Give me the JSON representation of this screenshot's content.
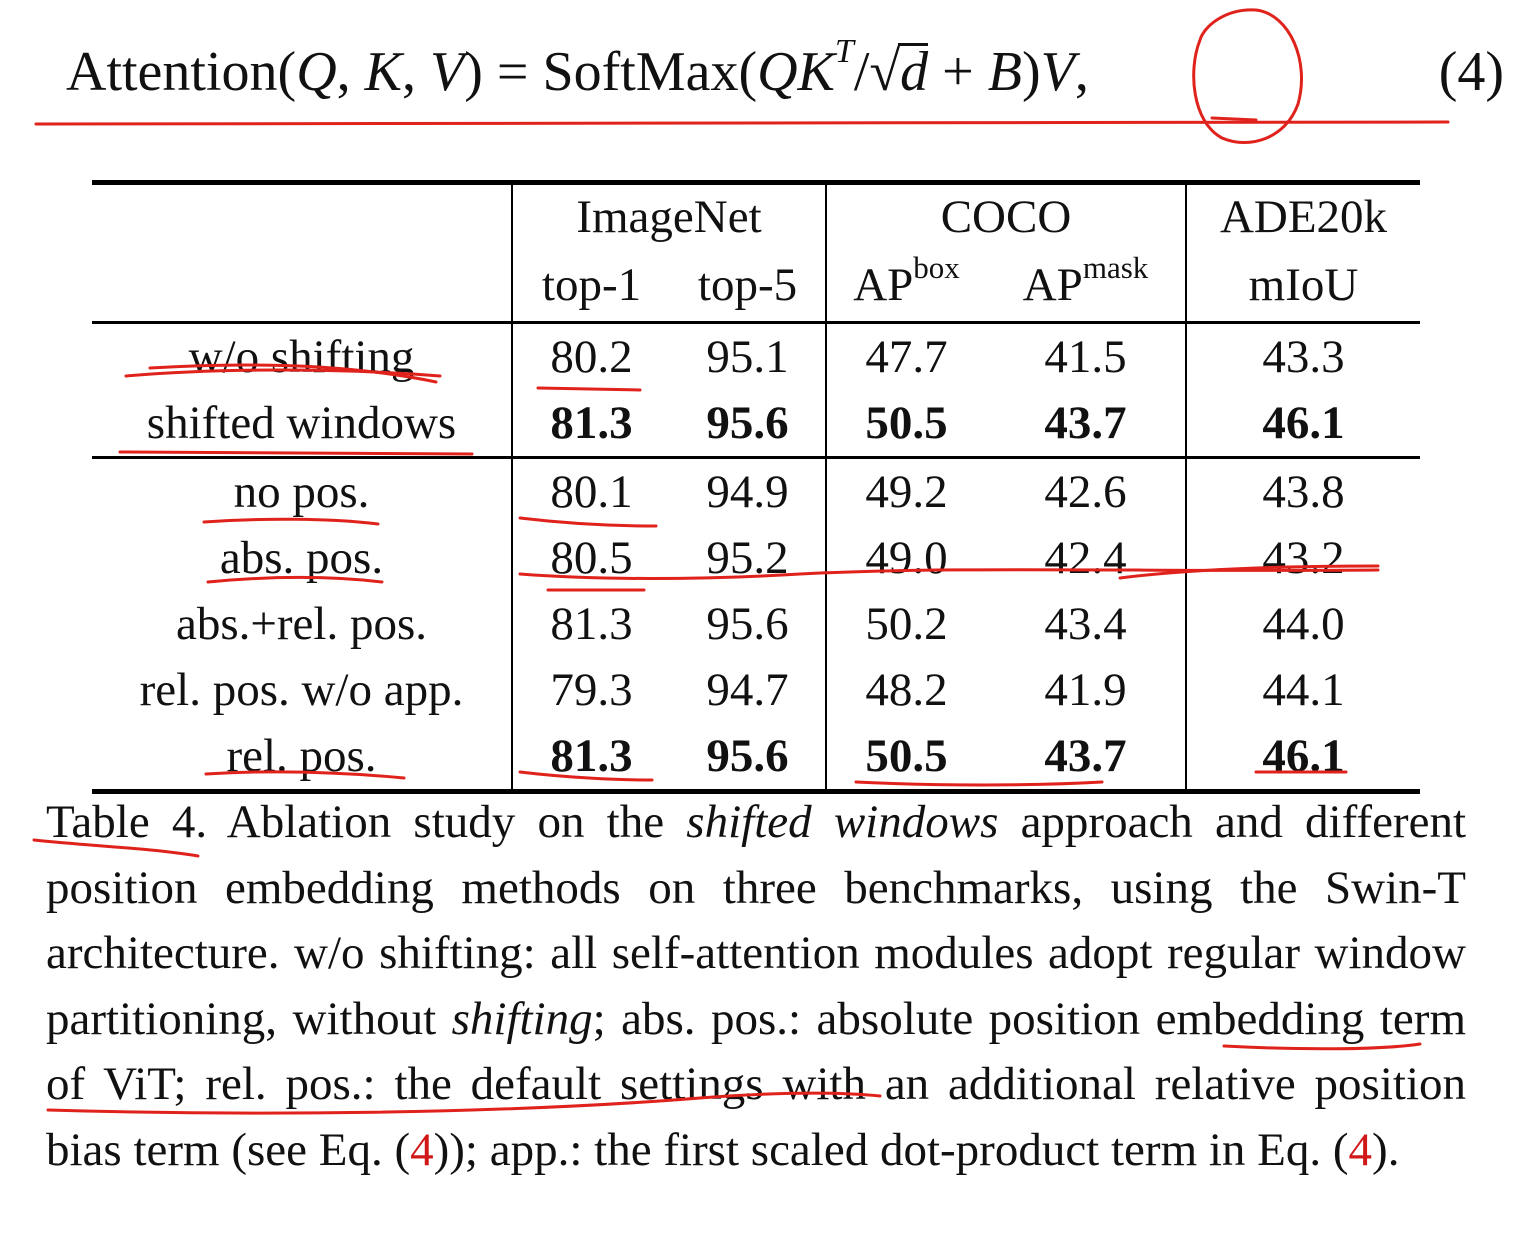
{
  "equation": {
    "prefix": "Attention(",
    "q": "Q",
    "comma1": ", ",
    "k": "K",
    "comma2": ", ",
    "v": "V",
    "mid": ") = SoftMax(",
    "qk": "QK",
    "t": "T",
    "slash": "/√",
    "d": "d",
    "plus": " + ",
    "b": "B",
    "close": ")",
    "v2": "V",
    "tail": ",",
    "number": "(4)"
  },
  "table": {
    "groups": [
      "ImageNet",
      "COCO",
      "ADE20k"
    ],
    "metrics": {
      "top1": "top-1",
      "top5": "top-5",
      "apbox_base": "AP",
      "apbox_sup": "box",
      "apmask_base": "AP",
      "apmask_sup": "mask",
      "miou": "mIoU"
    },
    "rows": [
      {
        "label": "w/o shifting",
        "values": [
          "80.2",
          "95.1",
          "47.7",
          "41.5",
          "43.3"
        ]
      },
      {
        "label": "shifted windows",
        "values": [
          "81.3",
          "95.6",
          "50.5",
          "43.7",
          "46.1"
        ]
      },
      {
        "label": "no pos.",
        "values": [
          "80.1",
          "94.9",
          "49.2",
          "42.6",
          "43.8"
        ]
      },
      {
        "label": "abs. pos.",
        "values": [
          "80.5",
          "95.2",
          "49.0",
          "42.4",
          "43.2"
        ]
      },
      {
        "label": "abs.+rel. pos.",
        "values": [
          "81.3",
          "95.6",
          "50.2",
          "43.4",
          "44.0"
        ]
      },
      {
        "label": "rel. pos. w/o app.",
        "values": [
          "79.3",
          "94.7",
          "48.2",
          "41.9",
          "44.1"
        ]
      },
      {
        "label": "rel. pos.",
        "values": [
          "81.3",
          "95.6",
          "50.5",
          "43.7",
          "46.1"
        ]
      }
    ]
  },
  "caption": {
    "s1": "Table 4. Ablation study on the ",
    "s2": "shifted windows",
    "s3": " approach and different position embedding methods on three benchmarks, using the Swin-T architecture. w/o shifting: all self-attention modules adopt regular window partitioning, without ",
    "s4": "shifting",
    "s5": "; abs. pos.: absolute position embedding term of ViT; rel. pos.: the default settings with an additional relative position bias term (see Eq. (",
    "ref1": "4",
    "s6": ")); app.: the first scaled dot-product term in Eq. (",
    "ref2": "4",
    "s7": ")."
  },
  "colors": {
    "text": "#111111",
    "annotation_ink": "#e0221c",
    "reference": "#d01818"
  }
}
